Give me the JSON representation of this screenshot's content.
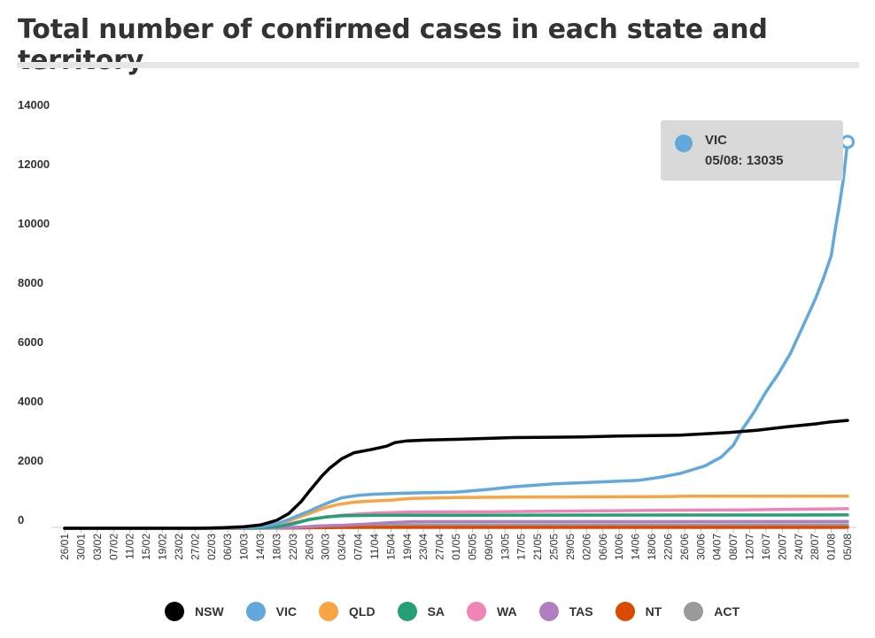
{
  "header": {
    "title": "Total number of confirmed cases in each state and territory"
  },
  "tooltip": {
    "series": "VIC",
    "text": "05/08: 13035",
    "color": "#62a8db"
  },
  "legend": {
    "items": [
      {
        "label": "NSW",
        "color": "#000000"
      },
      {
        "label": "VIC",
        "color": "#62a8db"
      },
      {
        "label": "QLD",
        "color": "#f7a444"
      },
      {
        "label": "SA",
        "color": "#249f76"
      },
      {
        "label": "WA",
        "color": "#ef84b5"
      },
      {
        "label": "TAS",
        "color": "#b07fbf"
      },
      {
        "label": "NT",
        "color": "#d84b00"
      },
      {
        "label": "ACT",
        "color": "#9a9a9a"
      }
    ]
  },
  "chart_data": {
    "type": "line",
    "title": "Total number of confirmed cases in each state and territory",
    "xlabel": "",
    "ylabel": "",
    "ylim": [
      0,
      14000
    ],
    "yticks": [
      0,
      2000,
      4000,
      6000,
      8000,
      10000,
      12000,
      14000
    ],
    "ytick_labels": [
      "0",
      "2000",
      "4000",
      "6000",
      "8000",
      "10000",
      "12000",
      "14000"
    ],
    "x_start": "2020-01-26",
    "x_end": "2020-08-05",
    "x_tick_labels": [
      "26/01",
      "30/01",
      "03/02",
      "07/02",
      "11/02",
      "15/02",
      "19/02",
      "23/02",
      "27/02",
      "02/03",
      "06/03",
      "10/03",
      "14/03",
      "18/03",
      "22/03",
      "26/03",
      "30/03",
      "03/04",
      "07/04",
      "11/04",
      "15/04",
      "19/04",
      "23/04",
      "27/04",
      "01/05",
      "05/05",
      "09/05",
      "13/05",
      "17/05",
      "21/05",
      "25/05",
      "29/05",
      "02/06",
      "06/06",
      "10/06",
      "14/06",
      "18/06",
      "22/06",
      "26/06",
      "30/06",
      "04/07",
      "08/07",
      "12/07",
      "16/07",
      "20/07",
      "24/07",
      "28/07",
      "01/08",
      "05/08"
    ],
    "grid": false,
    "legend_position": "bottom",
    "series": [
      {
        "name": "NSW",
        "color": "#000000",
        "points": [
          [
            "26/01",
            0
          ],
          [
            "28/02",
            0
          ],
          [
            "05/03",
            20
          ],
          [
            "10/03",
            55
          ],
          [
            "14/03",
            110
          ],
          [
            "18/03",
            270
          ],
          [
            "21/03",
            500
          ],
          [
            "24/03",
            900
          ],
          [
            "26/03",
            1250
          ],
          [
            "29/03",
            1750
          ],
          [
            "31/03",
            2030
          ],
          [
            "03/04",
            2350
          ],
          [
            "06/04",
            2550
          ],
          [
            "10/04",
            2650
          ],
          [
            "14/04",
            2770
          ],
          [
            "16/04",
            2890
          ],
          [
            "19/04",
            2950
          ],
          [
            "24/04",
            2980
          ],
          [
            "01/05",
            3000
          ],
          [
            "15/05",
            3060
          ],
          [
            "01/06",
            3080
          ],
          [
            "10/06",
            3110
          ],
          [
            "20/06",
            3130
          ],
          [
            "25/06",
            3140
          ],
          [
            "30/06",
            3180
          ],
          [
            "07/07",
            3230
          ],
          [
            "14/07",
            3310
          ],
          [
            "21/07",
            3420
          ],
          [
            "28/07",
            3520
          ],
          [
            "01/08",
            3590
          ],
          [
            "05/08",
            3640
          ]
        ]
      },
      {
        "name": "VIC",
        "color": "#62a8db",
        "points": [
          [
            "26/01",
            0
          ],
          [
            "25/02",
            0
          ],
          [
            "05/03",
            10
          ],
          [
            "10/03",
            25
          ],
          [
            "14/03",
            50
          ],
          [
            "18/03",
            150
          ],
          [
            "21/03",
            300
          ],
          [
            "24/03",
            470
          ],
          [
            "26/03",
            580
          ],
          [
            "29/03",
            770
          ],
          [
            "31/03",
            880
          ],
          [
            "03/04",
            1030
          ],
          [
            "07/04",
            1110
          ],
          [
            "11/04",
            1150
          ],
          [
            "15/04",
            1170
          ],
          [
            "20/04",
            1190
          ],
          [
            "01/05",
            1220
          ],
          [
            "08/05",
            1300
          ],
          [
            "15/05",
            1400
          ],
          [
            "25/05",
            1500
          ],
          [
            "05/06",
            1560
          ],
          [
            "15/06",
            1620
          ],
          [
            "20/06",
            1720
          ],
          [
            "25/06",
            1850
          ],
          [
            "01/07",
            2100
          ],
          [
            "05/07",
            2400
          ],
          [
            "08/07",
            2800
          ],
          [
            "10/07",
            3300
          ],
          [
            "13/07",
            3900
          ],
          [
            "16/07",
            4600
          ],
          [
            "19/07",
            5200
          ],
          [
            "22/07",
            5900
          ],
          [
            "25/07",
            6800
          ],
          [
            "28/07",
            7700
          ],
          [
            "30/07",
            8400
          ],
          [
            "01/08",
            9200
          ],
          [
            "02/08",
            10100
          ],
          [
            "03/08",
            10900
          ],
          [
            "04/08",
            11800
          ],
          [
            "05/08",
            13035
          ]
        ]
      },
      {
        "name": "QLD",
        "color": "#f7a444",
        "points": [
          [
            "26/01",
            0
          ],
          [
            "28/02",
            0
          ],
          [
            "10/03",
            20
          ],
          [
            "14/03",
            60
          ],
          [
            "18/03",
            150
          ],
          [
            "21/03",
            260
          ],
          [
            "24/03",
            400
          ],
          [
            "27/03",
            550
          ],
          [
            "30/03",
            700
          ],
          [
            "02/04",
            800
          ],
          [
            "06/04",
            880
          ],
          [
            "10/04",
            920
          ],
          [
            "15/04",
            950
          ],
          [
            "20/04",
            1010
          ],
          [
            "01/05",
            1040
          ],
          [
            "15/05",
            1050
          ],
          [
            "01/06",
            1060
          ],
          [
            "20/06",
            1070
          ],
          [
            "26/06",
            1080
          ],
          [
            "10/07",
            1080
          ],
          [
            "05/08",
            1085
          ]
        ]
      },
      {
        "name": "SA",
        "color": "#249f76",
        "points": [
          [
            "26/01",
            0
          ],
          [
            "28/02",
            0
          ],
          [
            "12/03",
            10
          ],
          [
            "18/03",
            50
          ],
          [
            "22/03",
            150
          ],
          [
            "26/03",
            300
          ],
          [
            "30/03",
            380
          ],
          [
            "03/04",
            420
          ],
          [
            "10/04",
            435
          ],
          [
            "20/04",
            438
          ],
          [
            "05/08",
            450
          ]
        ]
      },
      {
        "name": "WA",
        "color": "#ef84b5",
        "points": [
          [
            "26/01",
            0
          ],
          [
            "28/02",
            0
          ],
          [
            "12/03",
            15
          ],
          [
            "18/03",
            70
          ],
          [
            "22/03",
            180
          ],
          [
            "26/03",
            290
          ],
          [
            "30/03",
            380
          ],
          [
            "03/04",
            440
          ],
          [
            "08/04",
            490
          ],
          [
            "12/04",
            520
          ],
          [
            "20/04",
            550
          ],
          [
            "10/05",
            555
          ],
          [
            "05/06",
            590
          ],
          [
            "10/07",
            620
          ],
          [
            "05/08",
            660
          ]
        ]
      },
      {
        "name": "TAS",
        "color": "#b07fbf",
        "points": [
          [
            "26/01",
            0
          ],
          [
            "28/02",
            0
          ],
          [
            "18/03",
            10
          ],
          [
            "24/03",
            40
          ],
          [
            "30/03",
            80
          ],
          [
            "05/04",
            110
          ],
          [
            "10/04",
            150
          ],
          [
            "15/04",
            190
          ],
          [
            "20/04",
            220
          ],
          [
            "25/04",
            225
          ],
          [
            "05/08",
            228
          ]
        ]
      },
      {
        "name": "NT",
        "color": "#d84b00",
        "points": [
          [
            "26/01",
            0
          ],
          [
            "28/02",
            0
          ],
          [
            "18/03",
            3
          ],
          [
            "26/03",
            15
          ],
          [
            "02/04",
            27
          ],
          [
            "10/04",
            29
          ],
          [
            "05/08",
            31
          ]
        ]
      },
      {
        "name": "ACT",
        "color": "#9a9a9a",
        "points": [
          [
            "26/01",
            0
          ],
          [
            "28/02",
            0
          ],
          [
            "18/03",
            8
          ],
          [
            "24/03",
            40
          ],
          [
            "28/03",
            77
          ],
          [
            "03/04",
            96
          ],
          [
            "10/04",
            103
          ],
          [
            "20/04",
            106
          ],
          [
            "01/07",
            108
          ],
          [
            "20/07",
            113
          ],
          [
            "05/08",
            114
          ]
        ]
      }
    ],
    "highlight": {
      "series": "VIC",
      "x": "05/08",
      "y": 13035
    }
  }
}
